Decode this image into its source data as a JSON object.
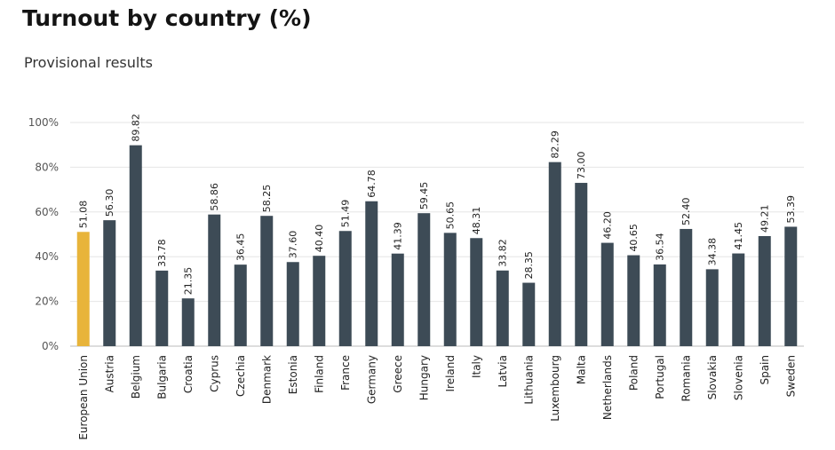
{
  "title": "Turnout by country (%)",
  "subtitle": "Provisional results",
  "colors": {
    "highlight": "#e8b43a",
    "bar": "#3d4b56",
    "grid": "#e6e6e6",
    "axis": "#bbbbbb"
  },
  "chart_data": {
    "type": "bar",
    "title": "Turnout by country (%)",
    "subtitle": "Provisional results",
    "xlabel": "",
    "ylabel": "",
    "ylim": [
      0,
      100
    ],
    "yticks": [
      0,
      20,
      40,
      60,
      80,
      100
    ],
    "ytick_labels": [
      "0%",
      "20%",
      "40%",
      "60%",
      "80%",
      "100%"
    ],
    "grid": true,
    "categories": [
      "European Union",
      "Austria",
      "Belgium",
      "Bulgaria",
      "Croatia",
      "Cyprus",
      "Czechia",
      "Denmark",
      "Estonia",
      "Finland",
      "France",
      "Germany",
      "Greece",
      "Hungary",
      "Ireland",
      "Italy",
      "Latvia",
      "Lithuania",
      "Luxembourg",
      "Malta",
      "Netherlands",
      "Poland",
      "Portugal",
      "Romania",
      "Slovakia",
      "Slovenia",
      "Spain",
      "Sweden"
    ],
    "values": [
      51.08,
      56.3,
      89.82,
      33.78,
      21.35,
      58.86,
      36.45,
      58.25,
      37.6,
      40.4,
      51.49,
      64.78,
      41.39,
      59.45,
      50.65,
      48.31,
      33.82,
      28.35,
      82.29,
      73.0,
      46.2,
      40.65,
      36.54,
      52.4,
      34.38,
      41.45,
      49.21,
      53.39
    ],
    "value_labels": [
      "51.08",
      "56.30",
      "89.82",
      "33.78",
      "21.35",
      "58.86",
      "36.45",
      "58.25",
      "37.60",
      "40.40",
      "51.49",
      "64.78",
      "41.39",
      "59.45",
      "50.65",
      "48.31",
      "33.82",
      "28.35",
      "82.29",
      "73.00",
      "46.20",
      "40.65",
      "36.54",
      "52.40",
      "34.38",
      "41.45",
      "49.21",
      "53.39"
    ],
    "highlight_category": "European Union"
  }
}
